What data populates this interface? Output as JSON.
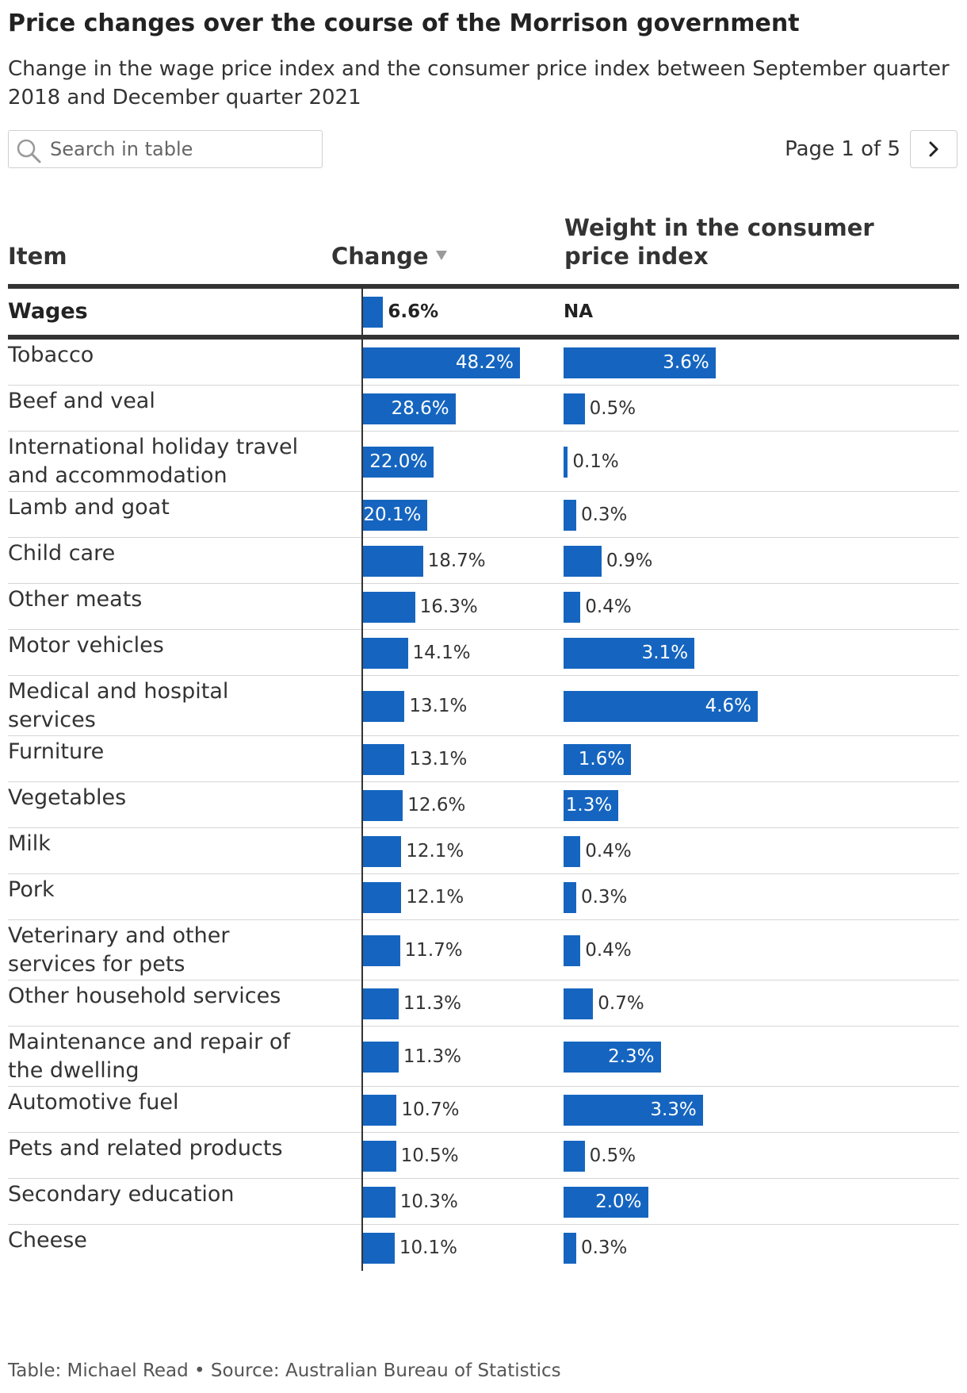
{
  "title": "Price changes over the course of the Morrison government",
  "subtitle": "Change in the wage price index and the consumer price index between September quarter 2018 and December quarter 2021",
  "search": {
    "placeholder": "Search in table"
  },
  "pagination": {
    "label": "Page 1 of 5"
  },
  "footer": "Table: Michael Read • Source: Australian Bureau of Statistics",
  "colors": {
    "bar": "#1565c0",
    "rule": "#333333",
    "row_divider": "#d6d6d6"
  },
  "icons": {
    "search": "search-icon",
    "next": "chevron-right-icon",
    "sort": "sort-descending-icon"
  },
  "chart_data": {
    "type": "table",
    "columns": [
      "Item",
      "Change",
      "Weight in the consumer price index"
    ],
    "sort": {
      "column": "Change",
      "direction": "descending"
    },
    "change_max": 48.2,
    "weight_max": 4.6,
    "highlight_row": {
      "item": "Wages",
      "change": 6.6,
      "change_label": "6.6%",
      "weight": null,
      "weight_label": "NA"
    },
    "rows": [
      {
        "item": "Tobacco",
        "change": 48.2,
        "change_label": "48.2%",
        "weight": 3.6,
        "weight_label": "3.6%"
      },
      {
        "item": "Beef and veal",
        "change": 28.6,
        "change_label": "28.6%",
        "weight": 0.5,
        "weight_label": "0.5%"
      },
      {
        "item": "International holiday travel and accommodation",
        "change": 22.0,
        "change_label": "22.0%",
        "weight": 0.1,
        "weight_label": "0.1%"
      },
      {
        "item": "Lamb and goat",
        "change": 20.1,
        "change_label": "20.1%",
        "weight": 0.3,
        "weight_label": "0.3%"
      },
      {
        "item": "Child care",
        "change": 18.7,
        "change_label": "18.7%",
        "weight": 0.9,
        "weight_label": "0.9%"
      },
      {
        "item": "Other meats",
        "change": 16.3,
        "change_label": "16.3%",
        "weight": 0.4,
        "weight_label": "0.4%"
      },
      {
        "item": "Motor vehicles",
        "change": 14.1,
        "change_label": "14.1%",
        "weight": 3.1,
        "weight_label": "3.1%"
      },
      {
        "item": "Medical and hospital services",
        "change": 13.1,
        "change_label": "13.1%",
        "weight": 4.6,
        "weight_label": "4.6%"
      },
      {
        "item": "Furniture",
        "change": 13.1,
        "change_label": "13.1%",
        "weight": 1.6,
        "weight_label": "1.6%"
      },
      {
        "item": "Vegetables",
        "change": 12.6,
        "change_label": "12.6%",
        "weight": 1.3,
        "weight_label": "1.3%"
      },
      {
        "item": "Milk",
        "change": 12.1,
        "change_label": "12.1%",
        "weight": 0.4,
        "weight_label": "0.4%"
      },
      {
        "item": "Pork",
        "change": 12.1,
        "change_label": "12.1%",
        "weight": 0.3,
        "weight_label": "0.3%"
      },
      {
        "item": "Veterinary and other services for pets",
        "change": 11.7,
        "change_label": "11.7%",
        "weight": 0.4,
        "weight_label": "0.4%"
      },
      {
        "item": "Other household services",
        "change": 11.3,
        "change_label": "11.3%",
        "weight": 0.7,
        "weight_label": "0.7%"
      },
      {
        "item": "Maintenance and repair of the dwelling",
        "change": 11.3,
        "change_label": "11.3%",
        "weight": 2.3,
        "weight_label": "2.3%"
      },
      {
        "item": "Automotive fuel",
        "change": 10.7,
        "change_label": "10.7%",
        "weight": 3.3,
        "weight_label": "3.3%"
      },
      {
        "item": "Pets and related products",
        "change": 10.5,
        "change_label": "10.5%",
        "weight": 0.5,
        "weight_label": "0.5%"
      },
      {
        "item": "Secondary education",
        "change": 10.3,
        "change_label": "10.3%",
        "weight": 2.0,
        "weight_label": "2.0%"
      },
      {
        "item": "Cheese",
        "change": 10.1,
        "change_label": "10.1%",
        "weight": 0.3,
        "weight_label": "0.3%"
      }
    ]
  }
}
